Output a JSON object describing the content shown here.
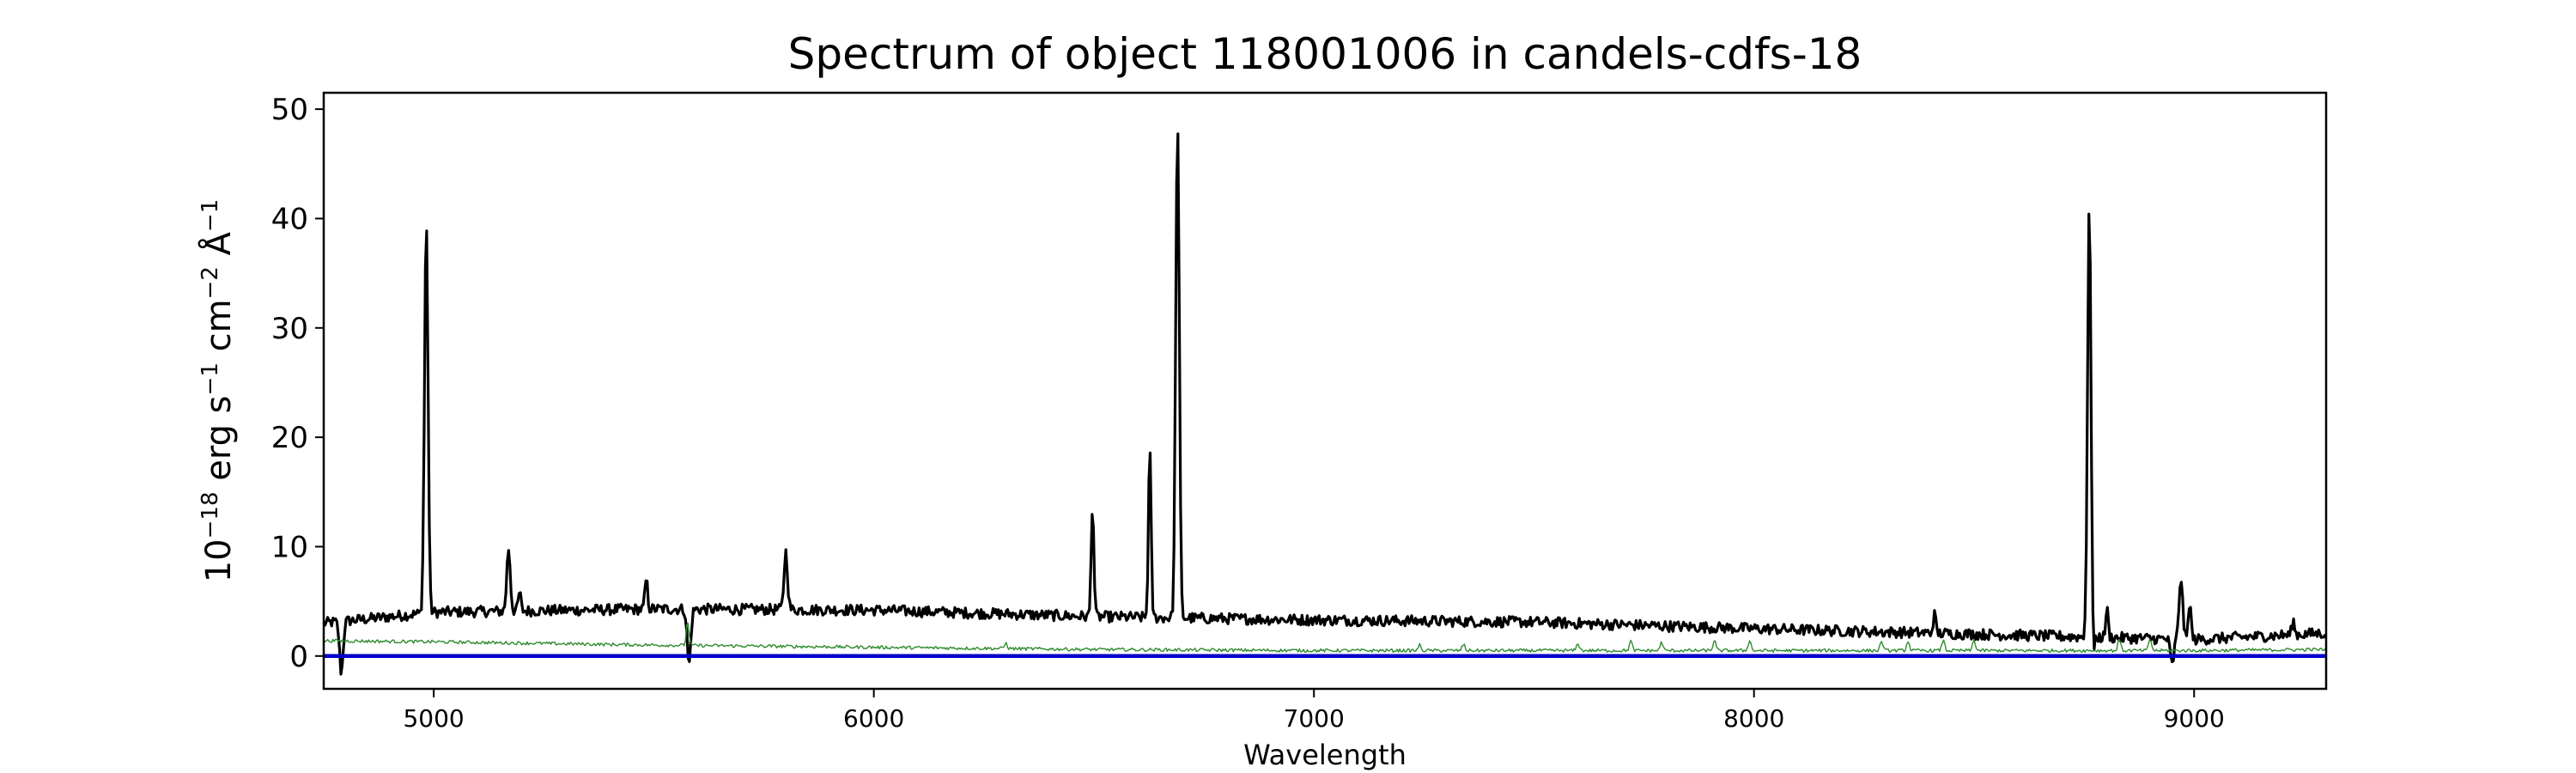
{
  "chart_data": {
    "type": "line",
    "title": "Spectrum of object 118001006 in candels-cdfs-18",
    "xlabel": "Wavelength",
    "ylabel_base": "10",
    "ylabel_exp": "−18",
    "ylabel_unit1": " erg s",
    "ylabel_exp2": "−1",
    "ylabel_unit2": " cm",
    "ylabel_exp3": "−2",
    "ylabel_unit3": " Å",
    "ylabel_exp4": "−1",
    "xlim": [
      4750,
      9300
    ],
    "ylim": [
      -3,
      51.5
    ],
    "x_ticks": [
      5000,
      6000,
      7000,
      8000,
      9000
    ],
    "x_tick_labels": [
      "5000",
      "6000",
      "7000",
      "8000",
      "9000"
    ],
    "y_ticks": [
      0,
      10,
      20,
      30,
      40,
      50
    ],
    "y_tick_labels": [
      "0",
      "10",
      "20",
      "30",
      "40",
      "50"
    ],
    "grid": false,
    "series": [
      {
        "role": "flux",
        "color": "#000000",
        "continuum": [
          [
            4750,
            3.0
          ],
          [
            5000,
            4.0
          ],
          [
            5500,
            4.3
          ],
          [
            6000,
            4.2
          ],
          [
            6500,
            3.6
          ],
          [
            7000,
            3.3
          ],
          [
            7500,
            3.1
          ],
          [
            8000,
            2.5
          ],
          [
            8500,
            2.0
          ],
          [
            8800,
            1.7
          ],
          [
            9000,
            1.5
          ],
          [
            9300,
            2.1
          ]
        ],
        "noise": 0.5,
        "lines": [
          {
            "x": 4983,
            "peak": 39.8,
            "width": 4
          },
          {
            "x": 5170,
            "peak": 9.8,
            "width": 4
          },
          {
            "x": 5195,
            "peak": 5.8,
            "width": 3
          },
          {
            "x": 5483,
            "peak": 7.0,
            "width": 3
          },
          {
            "x": 5800,
            "peak": 9.5,
            "width": 4
          },
          {
            "x": 6497,
            "peak": 14.0,
            "width": 3
          },
          {
            "x": 6627,
            "peak": 19.0,
            "width": 3
          },
          {
            "x": 6690,
            "peak": 49.0,
            "width": 4
          },
          {
            "x": 8410,
            "peak": 3.8,
            "width": 3
          },
          {
            "x": 8762,
            "peak": 41.2,
            "width": 4
          },
          {
            "x": 8802,
            "peak": 4.2,
            "width": 3
          },
          {
            "x": 8970,
            "peak": 7.2,
            "width": 4
          },
          {
            "x": 8990,
            "peak": 5.0,
            "width": 3
          },
          {
            "x": 9225,
            "peak": 3.2,
            "width": 3
          }
        ],
        "dips": [
          {
            "x": 4790,
            "depth": -1.5,
            "width": 4
          },
          {
            "x": 5580,
            "depth": -0.8,
            "width": 4
          },
          {
            "x": 8770,
            "depth": -1.5,
            "width": 3
          },
          {
            "x": 8950,
            "depth": -0.8,
            "width": 4
          }
        ]
      },
      {
        "role": "error",
        "color": "#2e8b2e",
        "continuum": [
          [
            4750,
            1.4
          ],
          [
            5000,
            1.3
          ],
          [
            5500,
            1.0
          ],
          [
            6000,
            0.8
          ],
          [
            6500,
            0.6
          ],
          [
            7000,
            0.5
          ],
          [
            7500,
            0.5
          ],
          [
            8000,
            0.5
          ],
          [
            8500,
            0.5
          ],
          [
            9000,
            0.5
          ],
          [
            9300,
            0.6
          ]
        ],
        "noise": 0.15,
        "lines": [
          {
            "x": 5577,
            "peak": 3.2,
            "width": 3
          },
          {
            "x": 6300,
            "peak": 1.2,
            "width": 3
          },
          {
            "x": 7240,
            "peak": 1.0,
            "width": 3
          },
          {
            "x": 7340,
            "peak": 1.1,
            "width": 3
          },
          {
            "x": 7600,
            "peak": 1.2,
            "width": 3
          },
          {
            "x": 7720,
            "peak": 1.4,
            "width": 3
          },
          {
            "x": 7790,
            "peak": 1.3,
            "width": 3
          },
          {
            "x": 7910,
            "peak": 1.5,
            "width": 3
          },
          {
            "x": 7990,
            "peak": 1.5,
            "width": 3
          },
          {
            "x": 8290,
            "peak": 1.4,
            "width": 3
          },
          {
            "x": 8350,
            "peak": 1.4,
            "width": 3
          },
          {
            "x": 8430,
            "peak": 1.5,
            "width": 3
          },
          {
            "x": 8500,
            "peak": 1.5,
            "width": 3
          },
          {
            "x": 8830,
            "peak": 1.6,
            "width": 3
          },
          {
            "x": 8900,
            "peak": 1.6,
            "width": 3
          }
        ]
      },
      {
        "role": "zero",
        "color": "#0000cc",
        "y": 0
      }
    ]
  }
}
